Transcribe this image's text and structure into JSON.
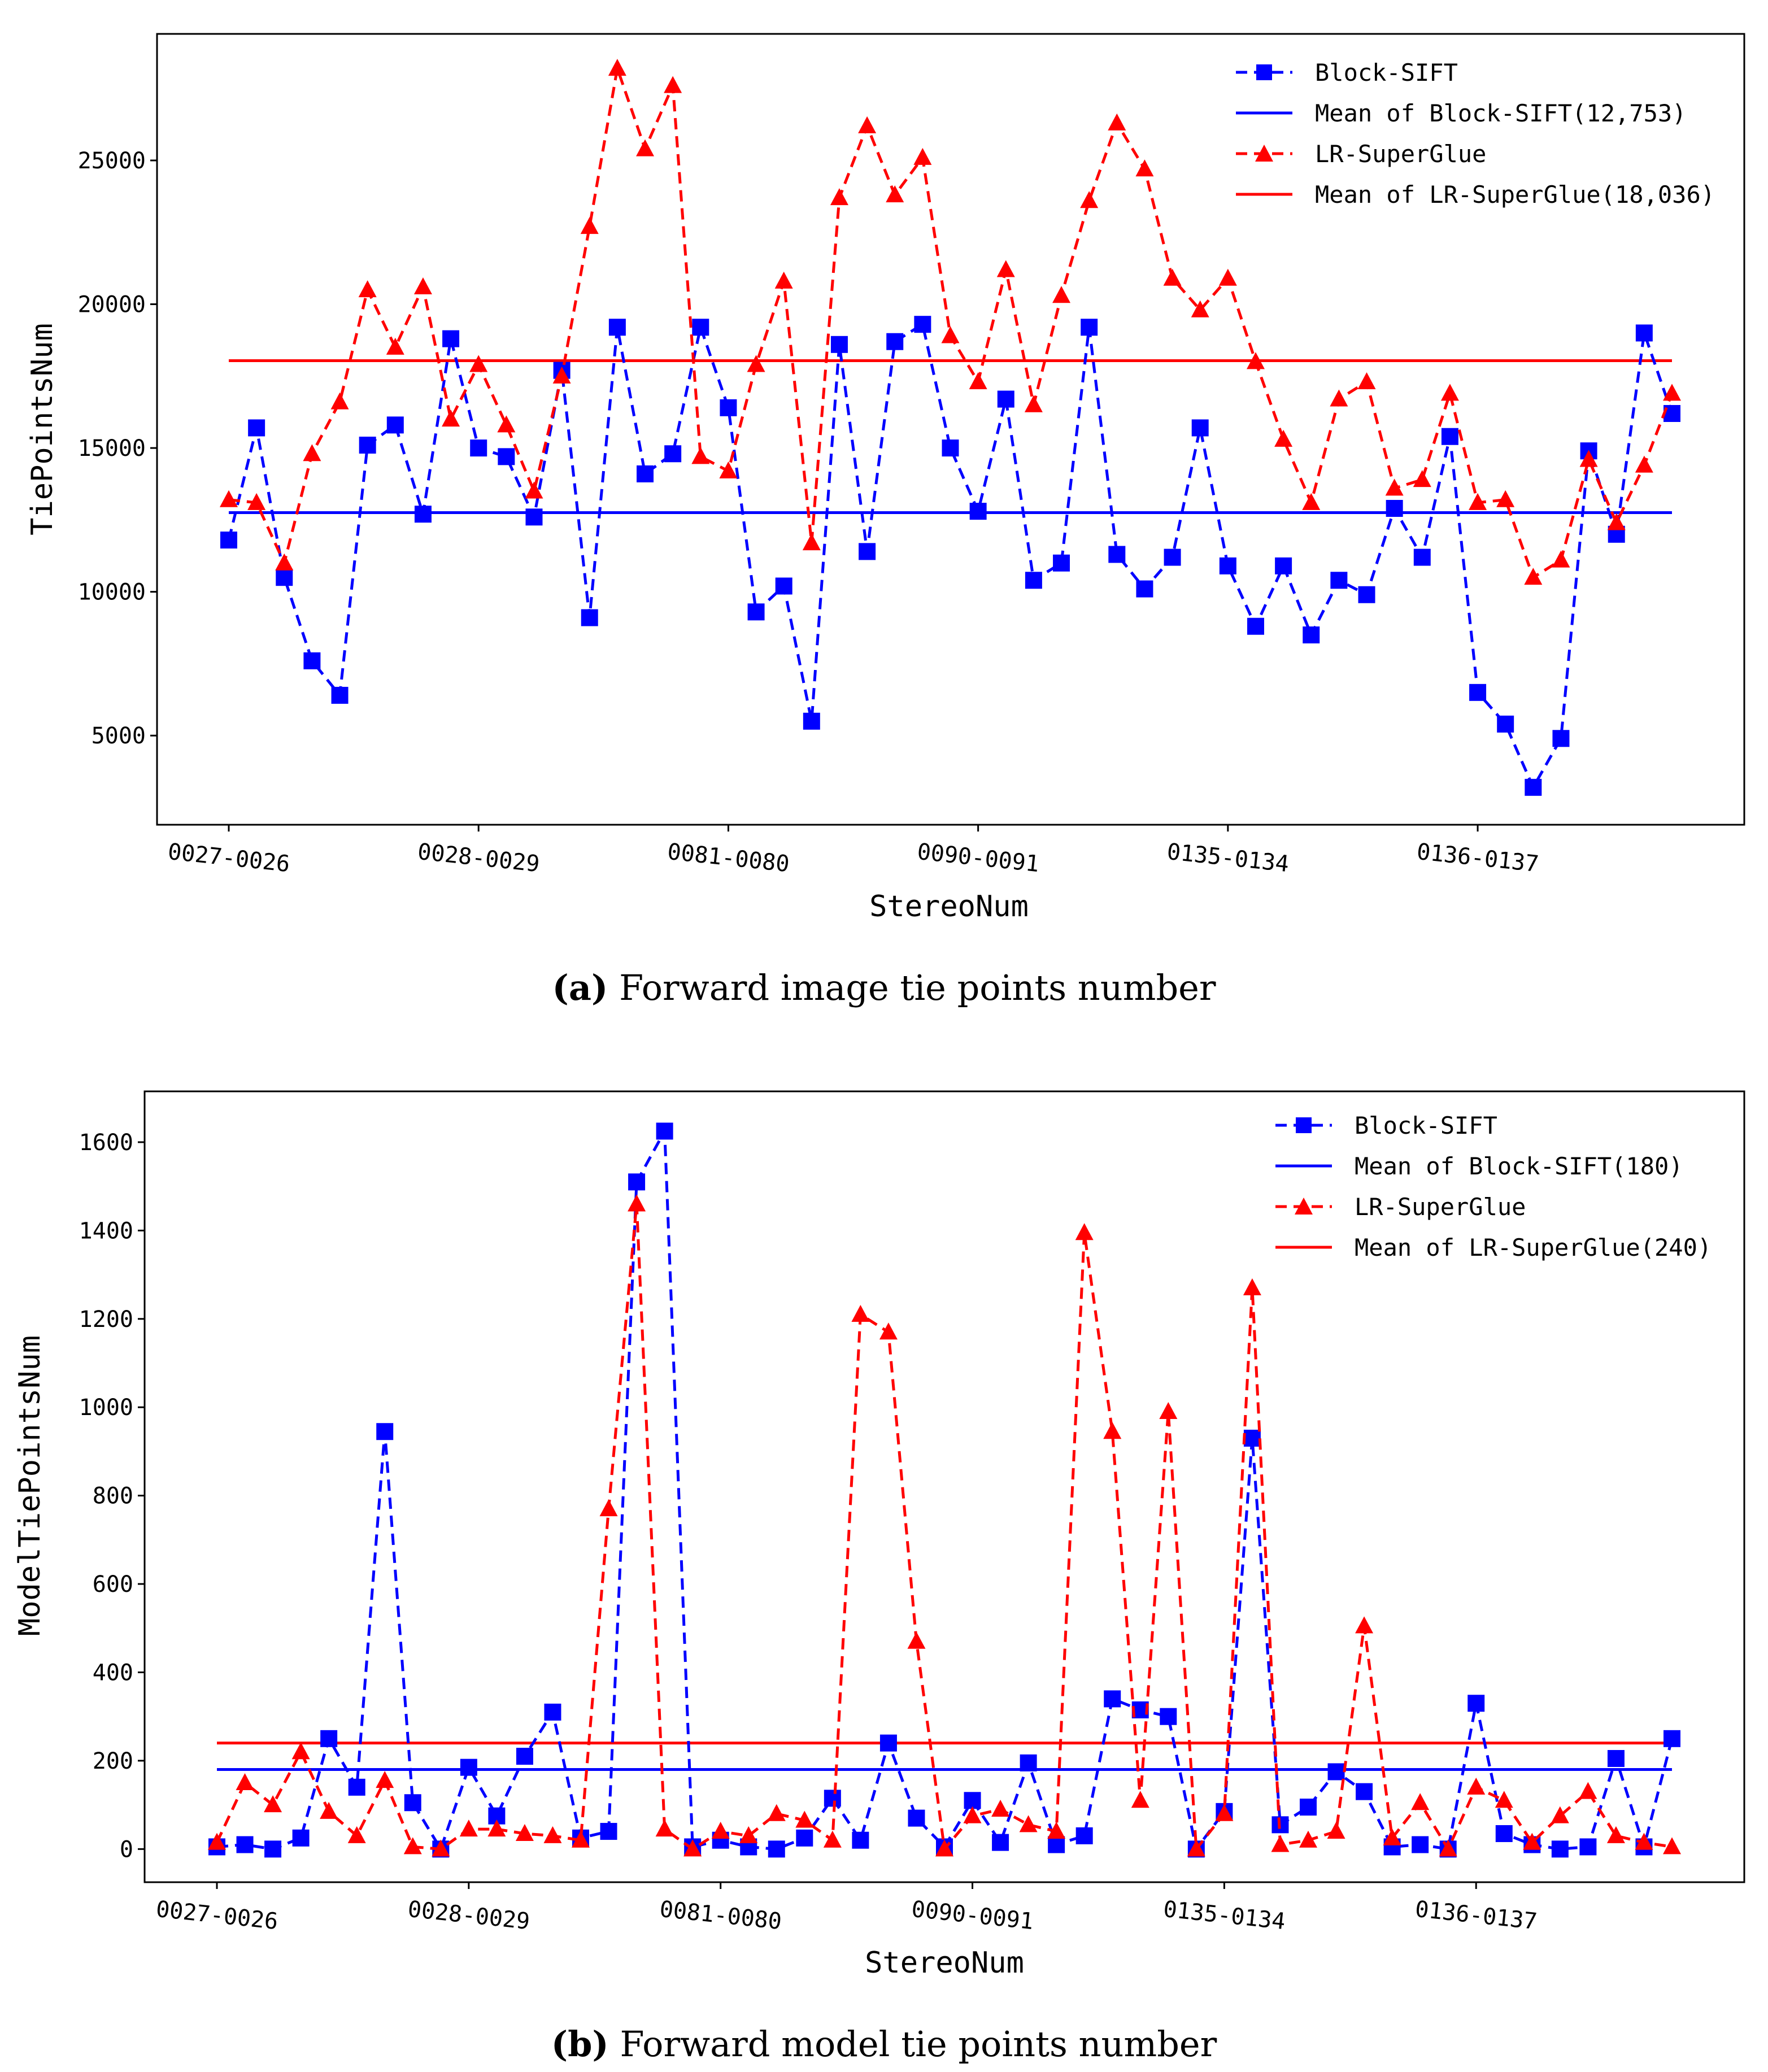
{
  "figure_a": {
    "caption_label": "(a)",
    "caption_text": "Forward image tie points number"
  },
  "figure_b": {
    "caption_label": "(b)",
    "caption_text": "Forward model tie points number"
  },
  "colors": {
    "block": "#0000ff",
    "superglue": "#ff0000"
  },
  "chart_data": [
    {
      "type": "line",
      "xlabel": "StereoNum",
      "ylabel": "TiePointsNum",
      "ylim": [
        1900,
        29400
      ],
      "yticks": [
        5000,
        10000,
        15000,
        20000,
        25000
      ],
      "tick_labels": [
        "0027-0026",
        "0028-0029",
        "0081-0080",
        "0090-0091",
        "0135-0134",
        "0136-0137"
      ],
      "tick_indices": [
        0,
        9,
        18,
        27,
        36,
        45
      ],
      "legend_position": "top-right",
      "series": [
        {
          "name": "Block-SIFT",
          "style": "dashed-square",
          "color": "#0000ff",
          "values": [
            11800,
            15700,
            10500,
            7600,
            6400,
            15100,
            15800,
            12700,
            18800,
            15000,
            14700,
            12600,
            17700,
            9100,
            19200,
            14100,
            14800,
            19200,
            16400,
            9300,
            10200,
            5500,
            18600,
            11400,
            18700,
            19300,
            15000,
            12800,
            16700,
            10400,
            11000,
            19200,
            11300,
            10100,
            11200,
            15700,
            10900,
            8800,
            10900,
            8500,
            10400,
            9900,
            12900,
            11200,
            15400,
            6500,
            5400,
            3200,
            4900,
            14900,
            12000,
            19000,
            16200
          ]
        },
        {
          "name": "Mean of Block-SIFT(12,753)",
          "style": "solid",
          "color": "#0000ff",
          "mean": 12753
        },
        {
          "name": "LR-SuperGlue",
          "style": "dashed-triangle",
          "color": "#ff0000",
          "values": [
            13200,
            13100,
            11000,
            14800,
            16600,
            20500,
            18500,
            20600,
            16000,
            17900,
            15800,
            13500,
            17500,
            22700,
            28200,
            25400,
            27600,
            14700,
            14200,
            17900,
            20800,
            11700,
            23700,
            26200,
            23800,
            25100,
            18900,
            17300,
            21200,
            16500,
            20300,
            23600,
            26300,
            24700,
            20900,
            19800,
            20900,
            18000,
            15300,
            13100,
            16700,
            17300,
            13600,
            13900,
            16900,
            13100,
            13200,
            10500,
            11100,
            14600,
            12400,
            14400,
            16900
          ]
        },
        {
          "name": "Mean of LR-SuperGlue(18,036)",
          "style": "solid",
          "color": "#ff0000",
          "mean": 18036
        }
      ]
    },
    {
      "type": "line",
      "xlabel": "StereoNum",
      "ylabel": "ModelTiePointsNum",
      "ylim": [
        -75,
        1715
      ],
      "yticks": [
        0,
        200,
        400,
        600,
        800,
        1000,
        1200,
        1400,
        1600
      ],
      "tick_labels": [
        "0027-0026",
        "0028-0029",
        "0081-0080",
        "0090-0091",
        "0135-0134",
        "0136-0137"
      ],
      "tick_indices": [
        0,
        9,
        18,
        27,
        36,
        45
      ],
      "legend_position": "top-right",
      "series": [
        {
          "name": "Block-SIFT",
          "style": "dashed-square",
          "color": "#0000ff",
          "values": [
            5,
            10,
            0,
            25,
            250,
            140,
            945,
            105,
            0,
            185,
            75,
            210,
            310,
            25,
            40,
            1510,
            1625,
            5,
            20,
            5,
            0,
            25,
            115,
            20,
            240,
            70,
            5,
            110,
            15,
            195,
            10,
            30,
            340,
            315,
            300,
            0,
            85,
            930,
            55,
            95,
            175,
            130,
            5,
            10,
            0,
            330,
            35,
            10,
            0,
            5,
            205,
            5,
            250
          ]
        },
        {
          "name": "Mean of Block-SIFT(180)",
          "style": "solid",
          "color": "#0000ff",
          "mean": 180
        },
        {
          "name": "LR-SuperGlue",
          "style": "dashed-triangle",
          "color": "#ff0000",
          "values": [
            15,
            150,
            100,
            220,
            85,
            30,
            155,
            5,
            0,
            45,
            45,
            35,
            30,
            20,
            770,
            1460,
            45,
            0,
            40,
            30,
            80,
            65,
            20,
            1210,
            1170,
            470,
            0,
            75,
            90,
            55,
            40,
            1395,
            945,
            110,
            990,
            0,
            80,
            1270,
            10,
            20,
            40,
            505,
            25,
            105,
            0,
            140,
            110,
            15,
            75,
            130,
            30,
            15,
            5
          ]
        },
        {
          "name": "Mean of LR-SuperGlue(240)",
          "style": "solid",
          "color": "#ff0000",
          "mean": 240
        }
      ]
    }
  ]
}
